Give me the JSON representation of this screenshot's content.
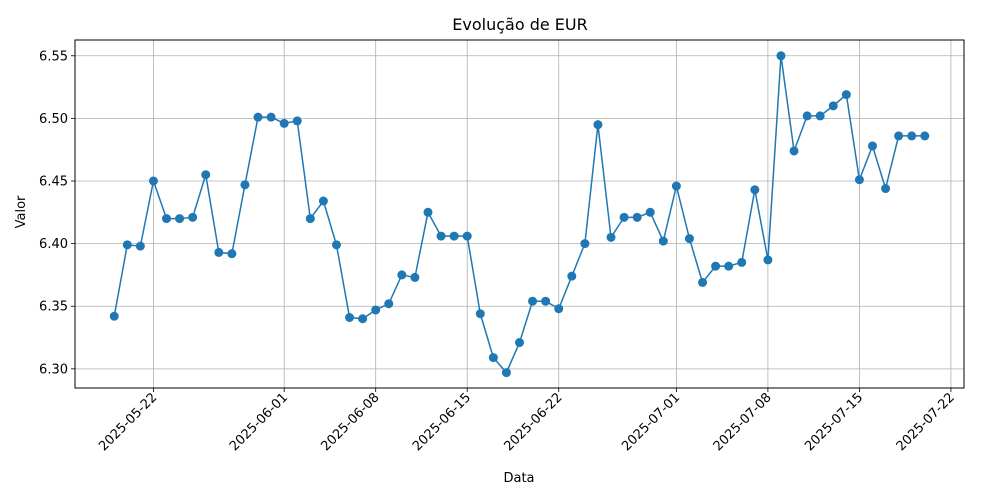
{
  "chart_data": {
    "type": "line",
    "title": "Evolução de EUR",
    "xlabel": "Data",
    "ylabel": "Valor",
    "xlim": [
      "2025-05-16",
      "2025-07-23"
    ],
    "ylim": [
      6.2847,
      6.5626
    ],
    "grid": true,
    "color": "#1f77b4",
    "marker": "circle",
    "x_ticks": [
      "2025-05-22",
      "2025-06-01",
      "2025-06-08",
      "2025-06-15",
      "2025-06-22",
      "2025-07-01",
      "2025-07-08",
      "2025-07-15",
      "2025-07-22"
    ],
    "y_ticks": [
      6.3,
      6.35,
      6.4,
      6.45,
      6.5,
      6.55
    ],
    "y_tick_labels": [
      "6.30",
      "6.35",
      "6.40",
      "6.45",
      "6.50",
      "6.55"
    ],
    "series": [
      {
        "x": [
          "2025-05-19",
          "2025-05-20",
          "2025-05-21",
          "2025-05-22",
          "2025-05-23",
          "2025-05-24",
          "2025-05-25",
          "2025-05-26",
          "2025-05-27",
          "2025-05-28",
          "2025-05-29",
          "2025-05-30",
          "2025-05-31",
          "2025-06-01",
          "2025-06-02",
          "2025-06-03",
          "2025-06-04",
          "2025-06-05",
          "2025-06-06",
          "2025-06-07",
          "2025-06-08",
          "2025-06-09",
          "2025-06-10",
          "2025-06-11",
          "2025-06-12",
          "2025-06-13",
          "2025-06-14",
          "2025-06-15",
          "2025-06-16",
          "2025-06-17",
          "2025-06-18",
          "2025-06-19",
          "2025-06-20",
          "2025-06-21",
          "2025-06-22",
          "2025-06-23",
          "2025-06-24",
          "2025-06-25",
          "2025-06-26",
          "2025-06-27",
          "2025-06-28",
          "2025-06-29",
          "2025-06-30",
          "2025-07-01",
          "2025-07-02",
          "2025-07-03",
          "2025-07-04",
          "2025-07-05",
          "2025-07-06",
          "2025-07-07",
          "2025-07-08",
          "2025-07-09",
          "2025-07-10",
          "2025-07-11",
          "2025-07-12",
          "2025-07-13",
          "2025-07-14",
          "2025-07-15",
          "2025-07-16",
          "2025-07-17",
          "2025-07-18",
          "2025-07-19",
          "2025-07-20"
        ],
        "values": [
          6.342,
          6.399,
          6.398,
          6.45,
          6.42,
          6.42,
          6.421,
          6.455,
          6.393,
          6.392,
          6.447,
          6.501,
          6.501,
          6.496,
          6.498,
          6.42,
          6.434,
          6.399,
          6.341,
          6.34,
          6.347,
          6.352,
          6.375,
          6.373,
          6.425,
          6.406,
          6.406,
          6.406,
          6.344,
          6.309,
          6.297,
          6.321,
          6.354,
          6.354,
          6.348,
          6.374,
          6.4,
          6.495,
          6.405,
          6.421,
          6.421,
          6.425,
          6.402,
          6.446,
          6.404,
          6.369,
          6.382,
          6.382,
          6.385,
          6.443,
          6.387,
          6.55,
          6.474,
          6.502,
          6.502,
          6.51,
          6.519,
          6.451,
          6.478,
          6.444,
          6.486,
          6.486,
          6.486
        ]
      }
    ]
  }
}
